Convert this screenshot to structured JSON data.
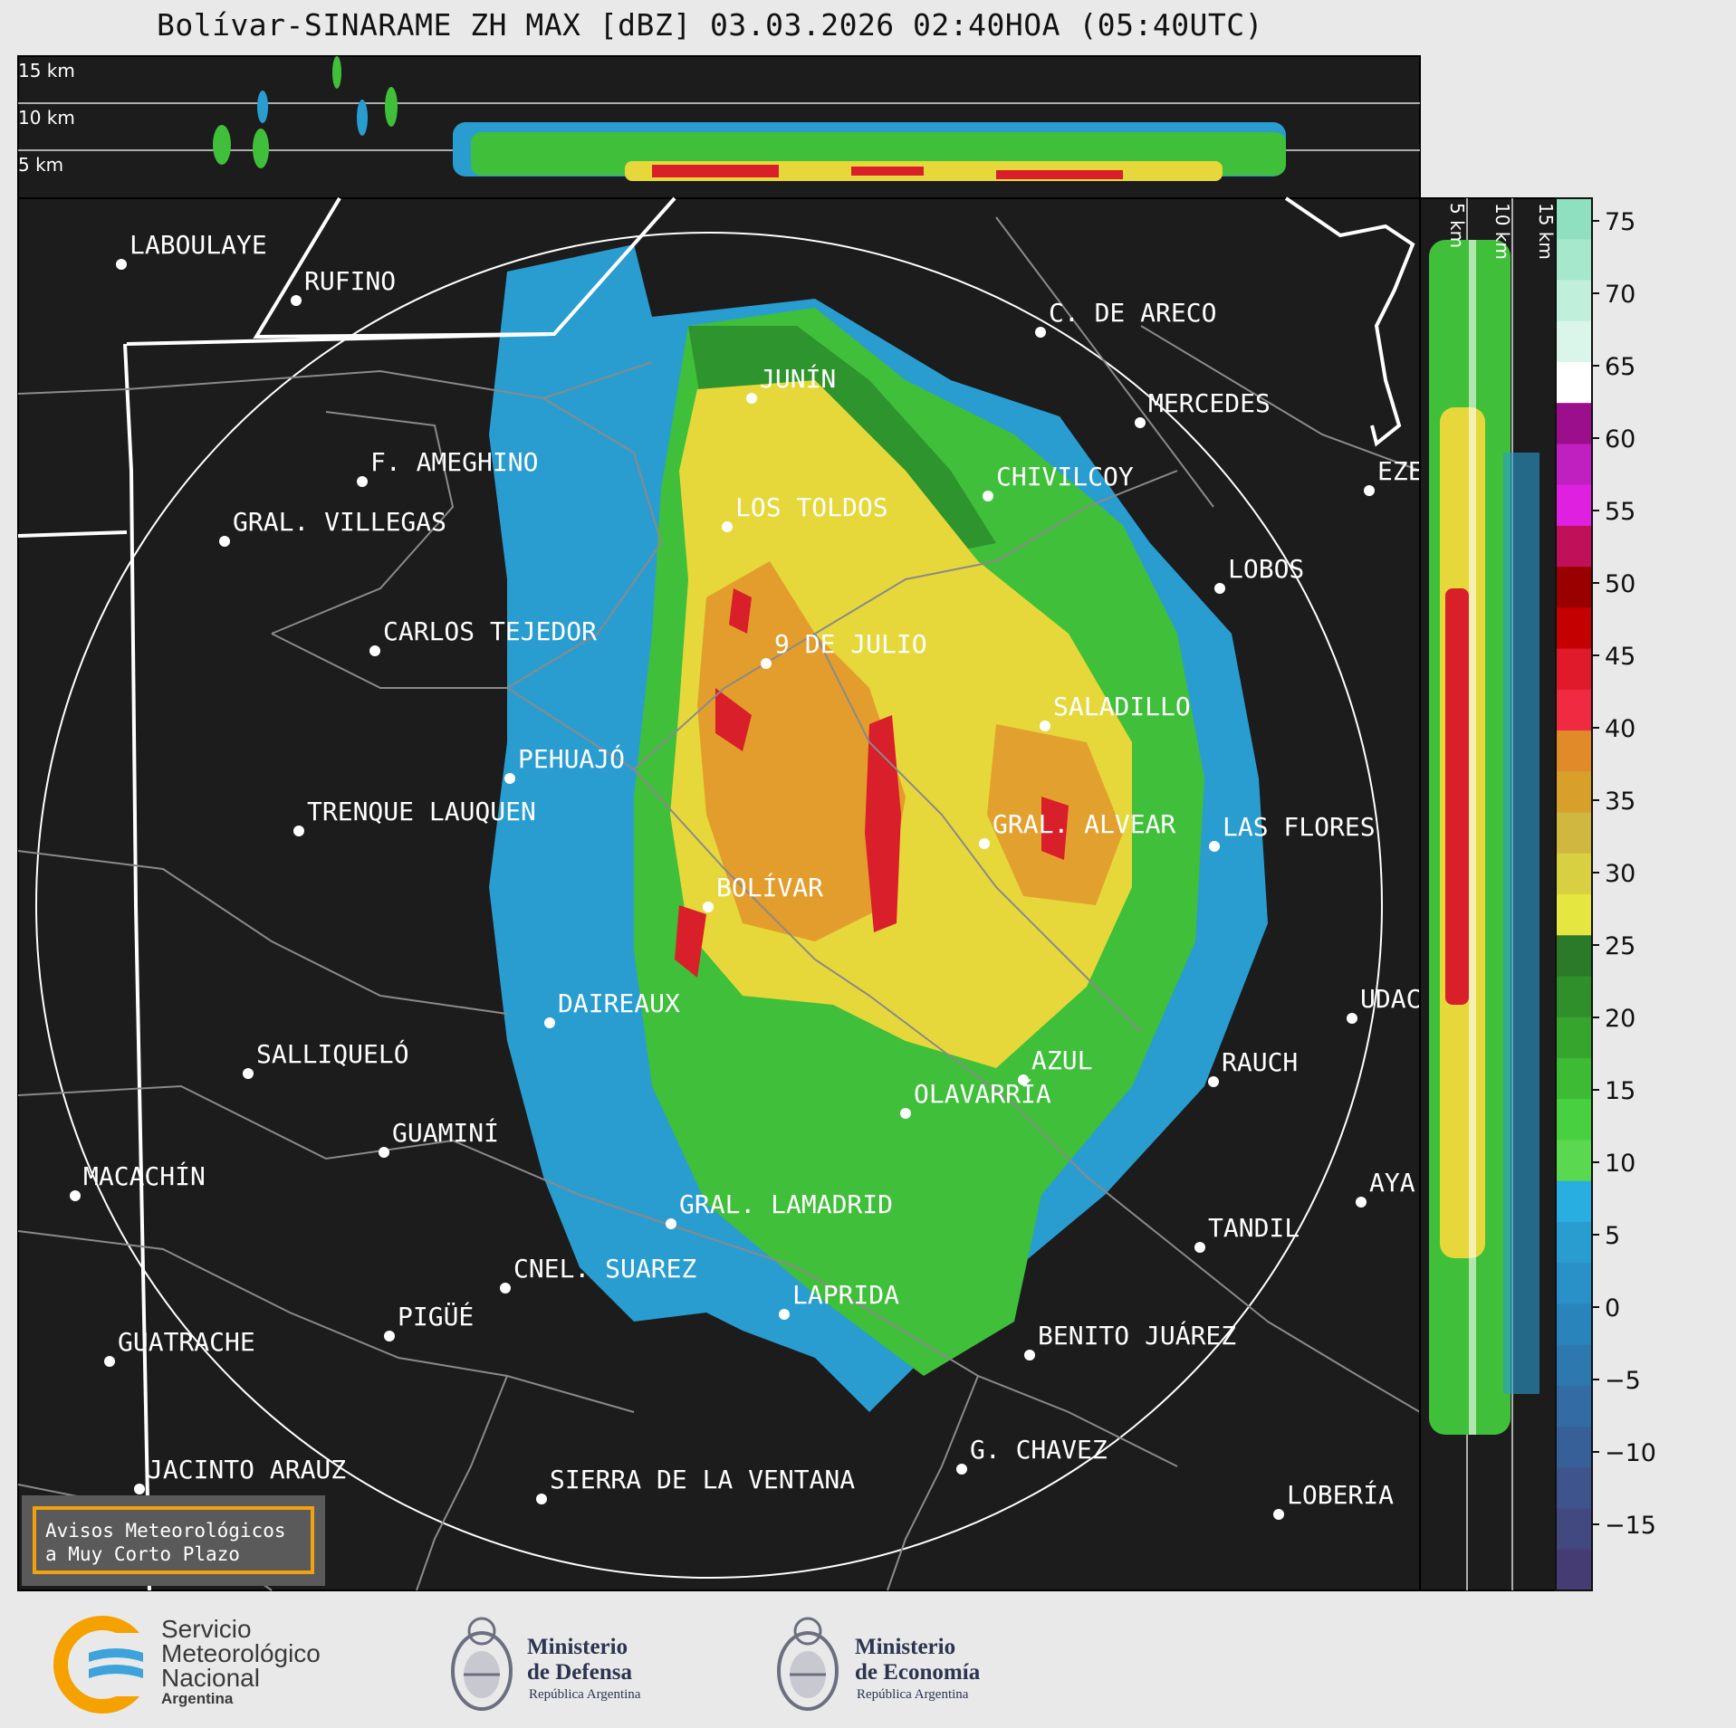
{
  "title": "Bolívar-SINARAME ZH MAX [dBZ] 03.03.2026 02:40HOA (05:40UTC)",
  "height_labels_top": [
    "15 km",
    "10 km",
    "5 km"
  ],
  "height_labels_side": [
    "5 km",
    "10 km",
    "15 km"
  ],
  "colorbar_ticks": [
    "75",
    "70",
    "65",
    "60",
    "55",
    "50",
    "45",
    "40",
    "35",
    "30",
    "25",
    "20",
    "15",
    "10",
    "5",
    "0",
    "−15"
  ],
  "colorbar_ticks_minus": [
    "−5",
    "−10"
  ],
  "cities": [
    {
      "name": "LABOULAYE"
    },
    {
      "name": "RUFINO"
    },
    {
      "name": "C. DE ARECO"
    },
    {
      "name": "JUNÍN"
    },
    {
      "name": "MERCEDES"
    },
    {
      "name": "F. AMEGHINO"
    },
    {
      "name": "CHIVILCOY"
    },
    {
      "name": "EZE"
    },
    {
      "name": "GRAL. VILLEGAS"
    },
    {
      "name": "LOS TOLDOS"
    },
    {
      "name": "LOBOS"
    },
    {
      "name": "CARLOS TEJEDOR"
    },
    {
      "name": "9 DE JULIO"
    },
    {
      "name": "SALADILLO"
    },
    {
      "name": "PEHUAJÓ"
    },
    {
      "name": "TRENQUE LAUQUEN"
    },
    {
      "name": "GRAL. ALVEAR"
    },
    {
      "name": "LAS FLORES"
    },
    {
      "name": "BOLÍVAR"
    },
    {
      "name": "DAIREAUX"
    },
    {
      "name": "UDAC"
    },
    {
      "name": "SALLIQUELÓ"
    },
    {
      "name": "AZUL"
    },
    {
      "name": "RAUCH"
    },
    {
      "name": "OLAVARRÍA"
    },
    {
      "name": "GUAMINÍ"
    },
    {
      "name": "MACACHÍN"
    },
    {
      "name": "AYA"
    },
    {
      "name": "GRAL. LAMADRID"
    },
    {
      "name": "TANDIL"
    },
    {
      "name": "CNEL. SUAREZ"
    },
    {
      "name": "LAPRIDA"
    },
    {
      "name": "PIGÜÉ"
    },
    {
      "name": "GUATRACHE"
    },
    {
      "name": "BENITO JUÁREZ"
    },
    {
      "name": "G. CHAVEZ"
    },
    {
      "name": "JACINTO ARAUZ"
    },
    {
      "name": "SIERRA DE LA VENTANA"
    },
    {
      "name": "LOBERÍA"
    }
  ],
  "warning_line1": "Avisos Meteorológicos",
  "warning_line2": "a Muy Corto Plazo",
  "smn": {
    "line1": "Servicio",
    "line2": "Meteorológico",
    "line3": "Nacional",
    "line4": "Argentina"
  },
  "defensa": {
    "line1": "Ministerio",
    "line2": "de Defensa",
    "sub": "República Argentina"
  },
  "economia": {
    "line1": "Ministerio",
    "line2": "de Economía",
    "sub": "República Argentina"
  },
  "colors": {
    "map_bg": "#1c1c1c",
    "page_bg": "#e9e9e9",
    "accent_orange": "#f3a20f"
  }
}
